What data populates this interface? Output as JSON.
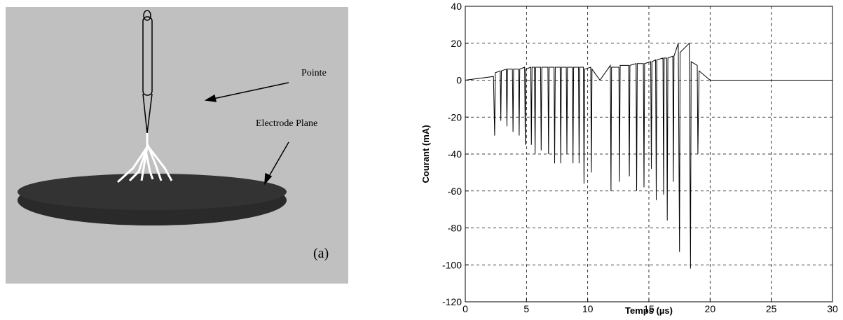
{
  "diagram": {
    "tip_label": "Pointe",
    "plane_label": "Electrode Plane",
    "panel_label": "(a)"
  },
  "chart_data": {
    "type": "line",
    "xlabel": "Temps (µs)",
    "ylabel": "Courant (mA)",
    "xlim": [
      0,
      30
    ],
    "ylim": [
      -120,
      40
    ],
    "xticks": [
      0,
      5,
      10,
      15,
      20,
      25,
      30
    ],
    "yticks": [
      -120,
      -100,
      -80,
      -60,
      -40,
      -20,
      0,
      20,
      40
    ],
    "grid": true,
    "x": [
      0,
      2.3,
      2.4,
      2.45,
      2.85,
      2.9,
      2.95,
      3.35,
      3.4,
      3.45,
      3.85,
      3.9,
      3.95,
      4.35,
      4.4,
      4.45,
      4.85,
      4.9,
      4.95,
      5.35,
      5.4,
      5.45,
      5.65,
      5.7,
      5.75,
      6.15,
      6.2,
      6.25,
      6.75,
      6.8,
      6.85,
      7.25,
      7.3,
      7.35,
      7.75,
      7.8,
      7.85,
      8.25,
      8.3,
      8.35,
      8.75,
      8.8,
      8.85,
      9.25,
      9.3,
      9.35,
      9.65,
      9.7,
      9.75,
      10.25,
      10.3,
      10.35,
      11,
      11.85,
      11.9,
      11.95,
      12.55,
      12.6,
      12.65,
      13.35,
      13.4,
      13.45,
      13.95,
      14,
      14.05,
      14.55,
      14.6,
      14.65,
      15.15,
      15.2,
      15.25,
      15.55,
      15.6,
      15.65,
      16.15,
      16.2,
      16.25,
      16.45,
      16.5,
      16.55,
      16.95,
      17,
      17.05,
      17.4,
      17.5,
      17.55,
      18.3,
      18.4,
      18.45,
      18.95,
      19,
      19.1,
      20,
      30
    ],
    "series": [
      {
        "color": "#000000",
        "values": [
          0,
          2,
          -30,
          4,
          5,
          -22,
          5,
          6,
          -25,
          6,
          6,
          -28,
          6,
          6,
          -30,
          6,
          7,
          -35,
          6,
          7,
          -35,
          7,
          7,
          -40,
          7,
          7,
          -38,
          7,
          7,
          -40,
          7,
          7,
          -45,
          7,
          7,
          -45,
          7,
          7,
          -40,
          7,
          7,
          -45,
          7,
          7,
          -45,
          7,
          7,
          -56,
          6,
          7,
          -50,
          6,
          0,
          8,
          -60,
          7,
          7,
          -55,
          8,
          8,
          -52,
          8,
          9,
          -60,
          9,
          9,
          -58,
          9,
          10,
          -48,
          10,
          11,
          -65,
          11,
          12,
          -62,
          12,
          12,
          -76,
          12,
          13,
          -55,
          13,
          20,
          -93,
          15,
          20,
          -102,
          10,
          8,
          -40,
          5,
          0,
          0
        ]
      }
    ]
  }
}
